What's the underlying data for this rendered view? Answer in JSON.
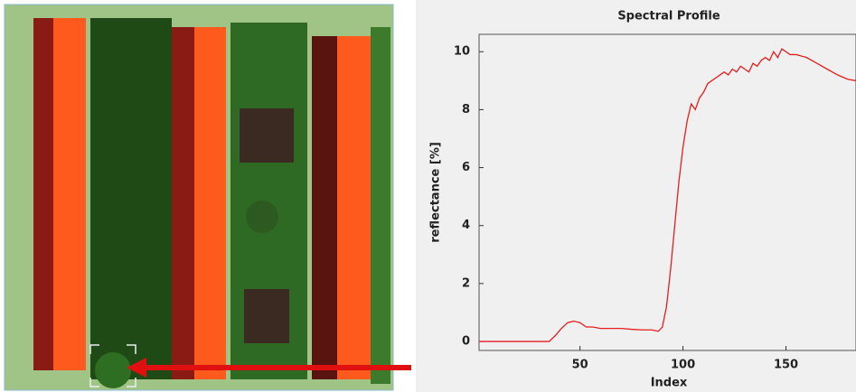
{
  "chart_data": {
    "type": "line",
    "title": "Spectral Profile",
    "x_label": "Index",
    "y_label": "reflectance [%]",
    "x": [
      1,
      10,
      20,
      30,
      35,
      38,
      41,
      44,
      47,
      50,
      53,
      56,
      60,
      65,
      70,
      75,
      80,
      85,
      88,
      90,
      92,
      94,
      96,
      98,
      100,
      102,
      104,
      106,
      108,
      110,
      112,
      114,
      116,
      118,
      120,
      122,
      124,
      126,
      128,
      130,
      132,
      134,
      136,
      138,
      140,
      142,
      144,
      146,
      148,
      150,
      152,
      155,
      160,
      165,
      170,
      175,
      180,
      184
    ],
    "values": [
      0,
      0,
      0,
      0,
      0,
      0.2,
      0.45,
      0.65,
      0.7,
      0.65,
      0.5,
      0.5,
      0.45,
      0.45,
      0.45,
      0.42,
      0.4,
      0.4,
      0.35,
      0.5,
      1.2,
      2.5,
      4.0,
      5.5,
      6.7,
      7.6,
      8.2,
      8.0,
      8.4,
      8.6,
      8.9,
      9.0,
      9.1,
      9.2,
      9.3,
      9.2,
      9.4,
      9.3,
      9.5,
      9.4,
      9.3,
      9.6,
      9.5,
      9.7,
      9.8,
      9.7,
      10.0,
      9.8,
      10.1,
      10.0,
      9.9,
      9.9,
      9.8,
      9.6,
      9.4,
      9.2,
      9.05,
      9.0
    ],
    "color": "#e31e1e",
    "xlim": [
      1,
      184
    ],
    "xticks": [
      50,
      100,
      150
    ],
    "ylim": [
      -0.31,
      10.6
    ],
    "yticks": [
      0,
      2,
      4,
      6,
      8,
      10
    ]
  }
}
